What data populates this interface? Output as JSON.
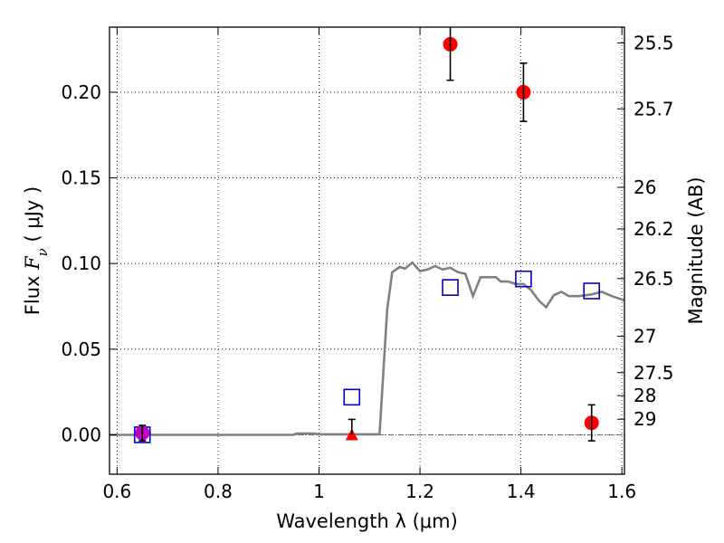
{
  "chart_data": {
    "type": "scatter",
    "title": "",
    "xlabel": "Wavelength  λ (μm)",
    "ylabel": "Flux  Fν  ( μJy )",
    "ylabel_parts": {
      "prefix": "Flux  ",
      "symbol": "F",
      "subscript": "ν",
      "suffix": "  ( μJy )"
    },
    "ylabel_right": "Magnitude (AB)",
    "xlim": [
      0.585,
      1.605
    ],
    "ylim": [
      -0.023,
      0.238
    ],
    "x_ticks": [
      {
        "value": 0.6,
        "label": "0.6"
      },
      {
        "value": 0.8,
        "label": "0.8"
      },
      {
        "value": 1.0,
        "label": "1"
      },
      {
        "value": 1.2,
        "label": "1.2"
      },
      {
        "value": 1.4,
        "label": "1.4"
      },
      {
        "value": 1.6,
        "label": "1.6"
      }
    ],
    "y_ticks": [
      {
        "value": 0.0,
        "label": "0.00"
      },
      {
        "value": 0.05,
        "label": "0.05"
      },
      {
        "value": 0.1,
        "label": "0.10"
      },
      {
        "value": 0.15,
        "label": "0.15"
      },
      {
        "value": 0.2,
        "label": "0.20"
      }
    ],
    "right_ticks": [
      {
        "flux": 0.2288,
        "label": "25.5"
      },
      {
        "flux": 0.1903,
        "label": "25.7"
      },
      {
        "flux": 0.1445,
        "label": "26"
      },
      {
        "flux": 0.1202,
        "label": "26.2"
      },
      {
        "flux": 0.0912,
        "label": "26.5"
      },
      {
        "flux": 0.0575,
        "label": "27"
      },
      {
        "flux": 0.0363,
        "label": "27.5"
      },
      {
        "flux": 0.0229,
        "label": "28"
      },
      {
        "flux": 0.0091,
        "label": "29"
      }
    ],
    "grid": true,
    "series": [
      {
        "kind": "line",
        "color": "#808080",
        "points": [
          [
            0.585,
            0.0
          ],
          [
            0.95,
            0.0
          ],
          [
            0.955,
            0.0008
          ],
          [
            0.99,
            0.0008
          ],
          [
            1.0,
            0.0003
          ],
          [
            1.12,
            0.0003
          ],
          [
            1.135,
            0.073
          ],
          [
            1.145,
            0.095
          ],
          [
            1.16,
            0.098
          ],
          [
            1.17,
            0.097
          ],
          [
            1.185,
            0.1005
          ],
          [
            1.2,
            0.0955
          ],
          [
            1.215,
            0.0965
          ],
          [
            1.23,
            0.0985
          ],
          [
            1.245,
            0.0965
          ],
          [
            1.26,
            0.0975
          ],
          [
            1.275,
            0.095
          ],
          [
            1.29,
            0.094
          ],
          [
            1.305,
            0.081
          ],
          [
            1.32,
            0.092
          ],
          [
            1.35,
            0.092
          ],
          [
            1.36,
            0.0895
          ],
          [
            1.375,
            0.0895
          ],
          [
            1.39,
            0.088
          ],
          [
            1.405,
            0.088
          ],
          [
            1.42,
            0.0845
          ],
          [
            1.435,
            0.0785
          ],
          [
            1.45,
            0.0745
          ],
          [
            1.465,
            0.0815
          ],
          [
            1.48,
            0.0835
          ],
          [
            1.495,
            0.081
          ],
          [
            1.515,
            0.081
          ],
          [
            1.54,
            0.082
          ],
          [
            1.56,
            0.0835
          ],
          [
            1.58,
            0.081
          ],
          [
            1.605,
            0.0785
          ]
        ]
      },
      {
        "kind": "open-square",
        "color": "#0000cc",
        "points": [
          [
            0.65,
            0.0
          ],
          [
            1.065,
            0.022
          ],
          [
            1.26,
            0.086
          ],
          [
            1.405,
            0.091
          ],
          [
            1.54,
            0.084
          ]
        ]
      },
      {
        "kind": "filled-circle",
        "color": "#ff0000",
        "points": [
          {
            "x": 1.26,
            "y": 0.228,
            "err": 0.021
          },
          {
            "x": 1.405,
            "y": 0.2,
            "err": 0.017
          },
          {
            "x": 1.54,
            "y": 0.007,
            "err": 0.0105
          }
        ]
      },
      {
        "kind": "filled-circle",
        "color": "#bf00bf",
        "points": [
          {
            "x": 0.65,
            "y": 0.001,
            "err": 0.0045
          }
        ]
      },
      {
        "kind": "filled-triangle",
        "color": "#ff0000",
        "points": [
          {
            "x": 1.065,
            "y": 0.0,
            "err_up": 0.009
          }
        ]
      }
    ],
    "zero_line": {
      "y": 0.0,
      "style": "dash-dot"
    }
  }
}
